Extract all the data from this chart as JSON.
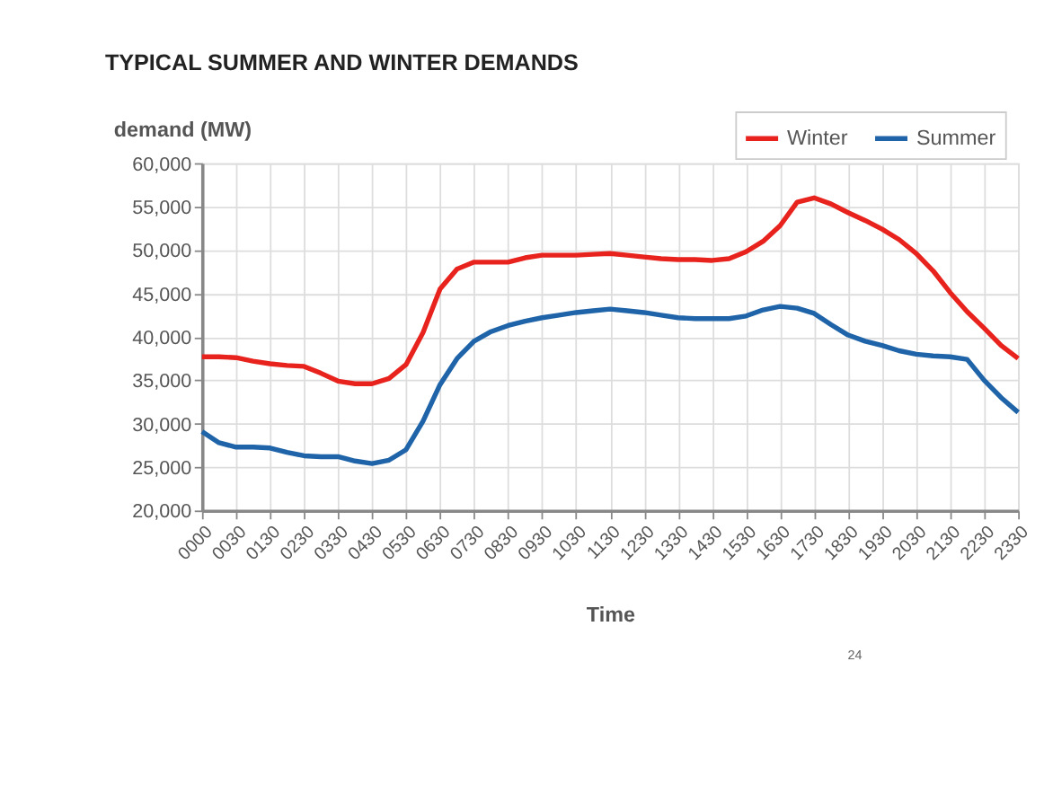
{
  "chart_data": {
    "type": "line",
    "title": "TYPICAL SUMMER AND WINTER DEMANDS",
    "ylabel": "demand (MW)",
    "xlabel": "Time",
    "categories": [
      "0000",
      null,
      "0030",
      null,
      "0130",
      null,
      "0230",
      null,
      "0330",
      null,
      "0430",
      null,
      "0530",
      null,
      "0630",
      null,
      "0730",
      null,
      "0830",
      null,
      "0930",
      null,
      "1030",
      null,
      "1130",
      null,
      "1230",
      null,
      "1330",
      null,
      "1430",
      null,
      "1530",
      null,
      "1630",
      null,
      "1730",
      null,
      "1830",
      null,
      "1930",
      null,
      "2030",
      null,
      "2130",
      null,
      "2230",
      null,
      "2330"
    ],
    "series": [
      {
        "name": "Winter",
        "color": "#e8231e",
        "values": [
          37700,
          37700,
          37600,
          37200,
          36900,
          36700,
          36600,
          35800,
          34900,
          34600,
          34600,
          35200,
          36800,
          40500,
          45500,
          47800,
          48600,
          48600,
          48600,
          49100,
          49400,
          49400,
          49400,
          49500,
          49600,
          49400,
          49200,
          49000,
          48900,
          48900,
          48800,
          49000,
          49800,
          51000,
          52800,
          55500,
          56000,
          55300,
          54300,
          53400,
          52400,
          51200,
          49600,
          47600,
          45100,
          42900,
          41000,
          39000,
          37500
        ]
      },
      {
        "name": "Summer",
        "color": "#1f64a8",
        "values": [
          29100,
          27800,
          27300,
          27300,
          27200,
          26700,
          26300,
          26200,
          26200,
          25700,
          25400,
          25800,
          27000,
          30300,
          34500,
          37500,
          39500,
          40600,
          41300,
          41800,
          42200,
          42500,
          42800,
          43000,
          43200,
          43000,
          42800,
          42500,
          42200,
          42100,
          42100,
          42100,
          42400,
          43100,
          43500,
          43300,
          42700,
          41400,
          40200,
          39500,
          39000,
          38400,
          38000,
          37800,
          37700,
          37400,
          35000,
          33000,
          31300
        ]
      }
    ],
    "ylim": [
      20000,
      60000
    ],
    "yticks": [
      {
        "value": 20000,
        "label": "20,000"
      },
      {
        "value": 25000,
        "label": "25,000"
      },
      {
        "value": 30000,
        "label": "30,000"
      },
      {
        "value": 35000,
        "label": "35,000"
      },
      {
        "value": 40000,
        "label": "40,000"
      },
      {
        "value": 45000,
        "label": "45,000"
      },
      {
        "value": 50000,
        "label": "50,000"
      },
      {
        "value": 55000,
        "label": "55,000"
      },
      {
        "value": 60000,
        "label": "60,000"
      }
    ],
    "grid": true,
    "legend": "top right",
    "marker": "none",
    "line_style": "solid",
    "annotations": [
      "24"
    ]
  }
}
